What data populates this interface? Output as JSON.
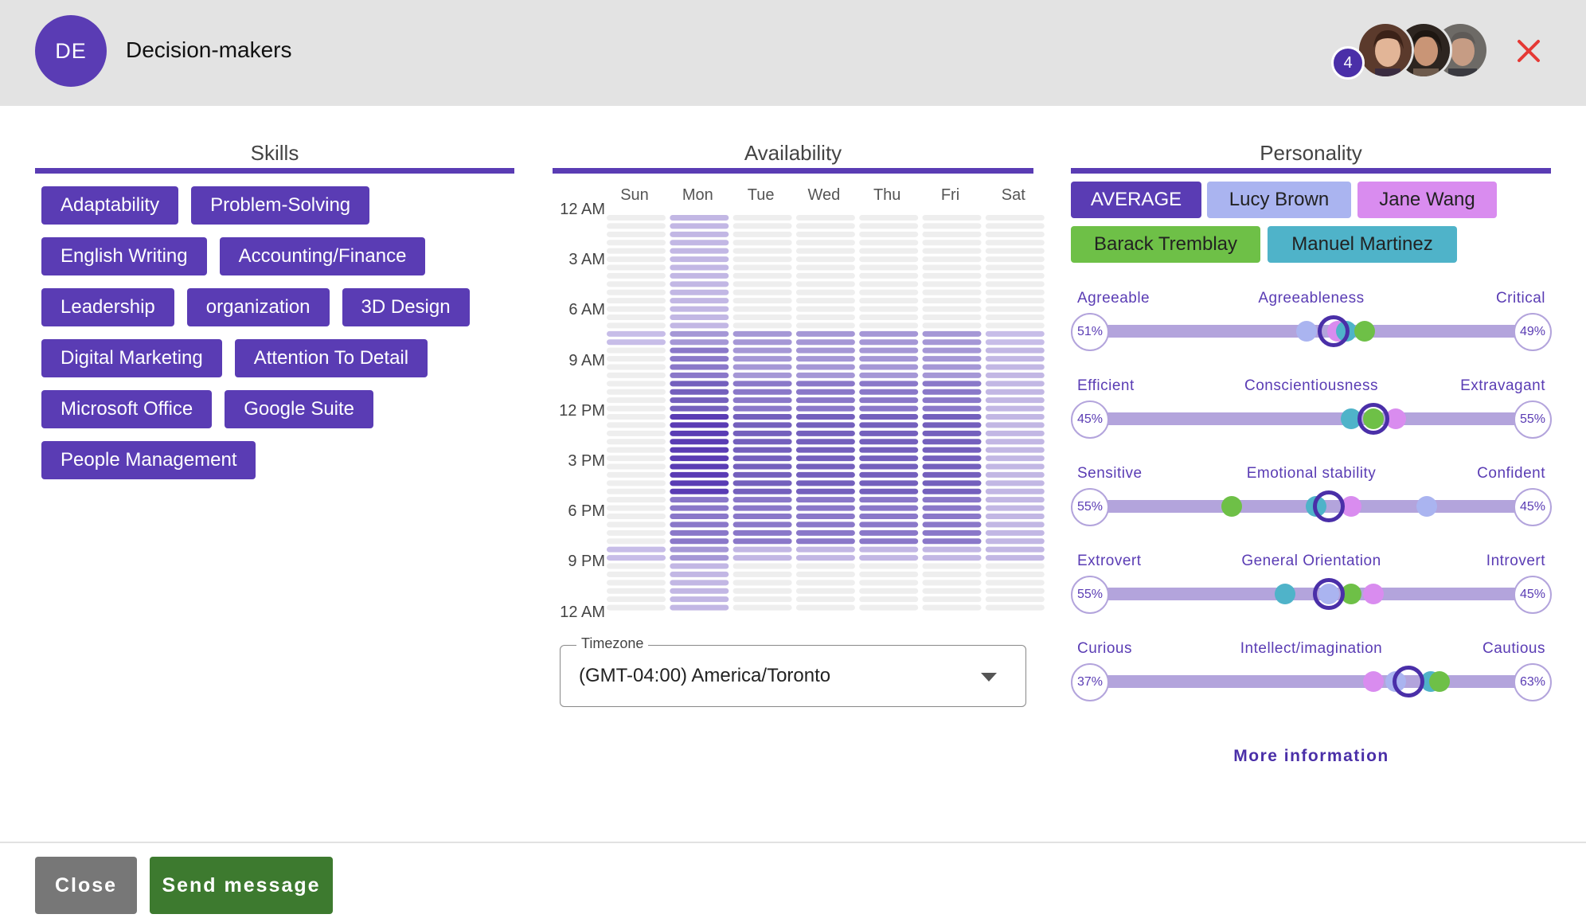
{
  "header": {
    "initials": "DE",
    "title": "Decision-makers",
    "member_count": "4",
    "members": [
      "member-1",
      "member-2",
      "member-3"
    ]
  },
  "sections": {
    "skills": "Skills",
    "availability": "Availability",
    "personality": "Personality"
  },
  "skills": [
    [
      "Adaptability",
      "Problem-Solving"
    ],
    [
      "English Writing",
      "Accounting/Finance"
    ],
    [
      "Leadership",
      "organization",
      "3D Design"
    ],
    [
      "Digital Marketing",
      "Attention To Detail"
    ],
    [
      "Microsoft Office",
      "Google Suite"
    ],
    [
      "People Management"
    ]
  ],
  "availability": {
    "days": [
      "Sun",
      "Mon",
      "Tue",
      "Wed",
      "Thu",
      "Fri",
      "Sat"
    ],
    "times": [
      "12 AM",
      "3 AM",
      "6 AM",
      "9 AM",
      "12 PM",
      "3 PM",
      "6 PM",
      "9 PM",
      "12 AM"
    ],
    "levels": [
      [
        0,
        2,
        0,
        0,
        0,
        0,
        0
      ],
      [
        0,
        2,
        0,
        0,
        0,
        0,
        0
      ],
      [
        0,
        2,
        0,
        0,
        0,
        0,
        0
      ],
      [
        0,
        2,
        0,
        0,
        0,
        0,
        0
      ],
      [
        0,
        2,
        0,
        0,
        0,
        0,
        0
      ],
      [
        0,
        2,
        0,
        0,
        0,
        0,
        0
      ],
      [
        0,
        2,
        0,
        0,
        0,
        0,
        0
      ],
      [
        1,
        3,
        3,
        3,
        3,
        3,
        1
      ],
      [
        0,
        4,
        3,
        3,
        3,
        3,
        2
      ],
      [
        0,
        4,
        3,
        3,
        3,
        3,
        2
      ],
      [
        0,
        5,
        4,
        4,
        4,
        4,
        2
      ],
      [
        0,
        5,
        4,
        4,
        4,
        4,
        2
      ],
      [
        0,
        6,
        5,
        5,
        5,
        5,
        2
      ],
      [
        0,
        6,
        5,
        5,
        5,
        5,
        2
      ],
      [
        0,
        6,
        5,
        5,
        5,
        5,
        2
      ],
      [
        0,
        6,
        5,
        5,
        5,
        5,
        2
      ],
      [
        0,
        6,
        5,
        5,
        5,
        5,
        2
      ],
      [
        0,
        4,
        4,
        4,
        4,
        4,
        2
      ],
      [
        0,
        4,
        4,
        4,
        4,
        4,
        2
      ],
      [
        0,
        4,
        4,
        4,
        4,
        4,
        2
      ],
      [
        1,
        3,
        2,
        2,
        2,
        2,
        2
      ],
      [
        0,
        2,
        0,
        0,
        0,
        0,
        0
      ],
      [
        0,
        2,
        0,
        0,
        0,
        0,
        0
      ],
      [
        0,
        2,
        0,
        0,
        0,
        0,
        0
      ]
    ],
    "timezone_label": "Timezone",
    "timezone_value": "(GMT-04:00) America/Toronto"
  },
  "personality": {
    "tabs": [
      {
        "label": "AVERAGE",
        "bg": "#5a3cb4",
        "fg": "#ffffff"
      },
      {
        "label": "Lucy Brown",
        "bg": "#aab4f0",
        "fg": "#222222"
      },
      {
        "label": "Jane Wang",
        "bg": "#d98cef",
        "fg": "#222222"
      },
      {
        "label": "Barack Tremblay",
        "bg": "#6ec047",
        "fg": "#222222"
      },
      {
        "label": "Manuel Martinez",
        "bg": "#4fb3c9",
        "fg": "#222222"
      }
    ],
    "person_colors": {
      "lucy": "#aab4f0",
      "jane": "#d98cef",
      "barack": "#6ec047",
      "manuel": "#4fb3c9"
    },
    "traits": [
      {
        "left": "Agreeable",
        "center": "Agreeableness",
        "right": "Critical",
        "left_pct": "51%",
        "right_pct": "49%",
        "avg": 0.55,
        "dots": {
          "lucy": 0.49,
          "jane": 0.56,
          "manuel": 0.58,
          "barack": 0.62
        }
      },
      {
        "left": "Efficient",
        "center": "Conscientiousness",
        "right": "Extravagant",
        "left_pct": "45%",
        "right_pct": "55%",
        "avg": 0.64,
        "dots": {
          "manuel": 0.59,
          "barack": 0.64,
          "jane": 0.69
        }
      },
      {
        "left": "Sensitive",
        "center": "Emotional stability",
        "right": "Confident",
        "left_pct": "55%",
        "right_pct": "45%",
        "avg": 0.54,
        "dots": {
          "barack": 0.32,
          "manuel": 0.51,
          "jane": 0.59,
          "lucy": 0.76
        }
      },
      {
        "left": "Extrovert",
        "center": "General Orientation",
        "right": "Introvert",
        "left_pct": "55%",
        "right_pct": "45%",
        "avg": 0.54,
        "dots": {
          "manuel": 0.44,
          "lucy": 0.54,
          "barack": 0.59,
          "jane": 0.64
        }
      },
      {
        "left": "Curious",
        "center": "Intellect/imagination",
        "right": "Cautious",
        "left_pct": "37%",
        "right_pct": "63%",
        "avg": 0.72,
        "dots": {
          "jane": 0.64,
          "lucy": 0.69,
          "manuel": 0.77,
          "barack": 0.79
        }
      }
    ],
    "more_info": "More information"
  },
  "footer": {
    "close_label": "Close",
    "send_label": "Send message"
  }
}
